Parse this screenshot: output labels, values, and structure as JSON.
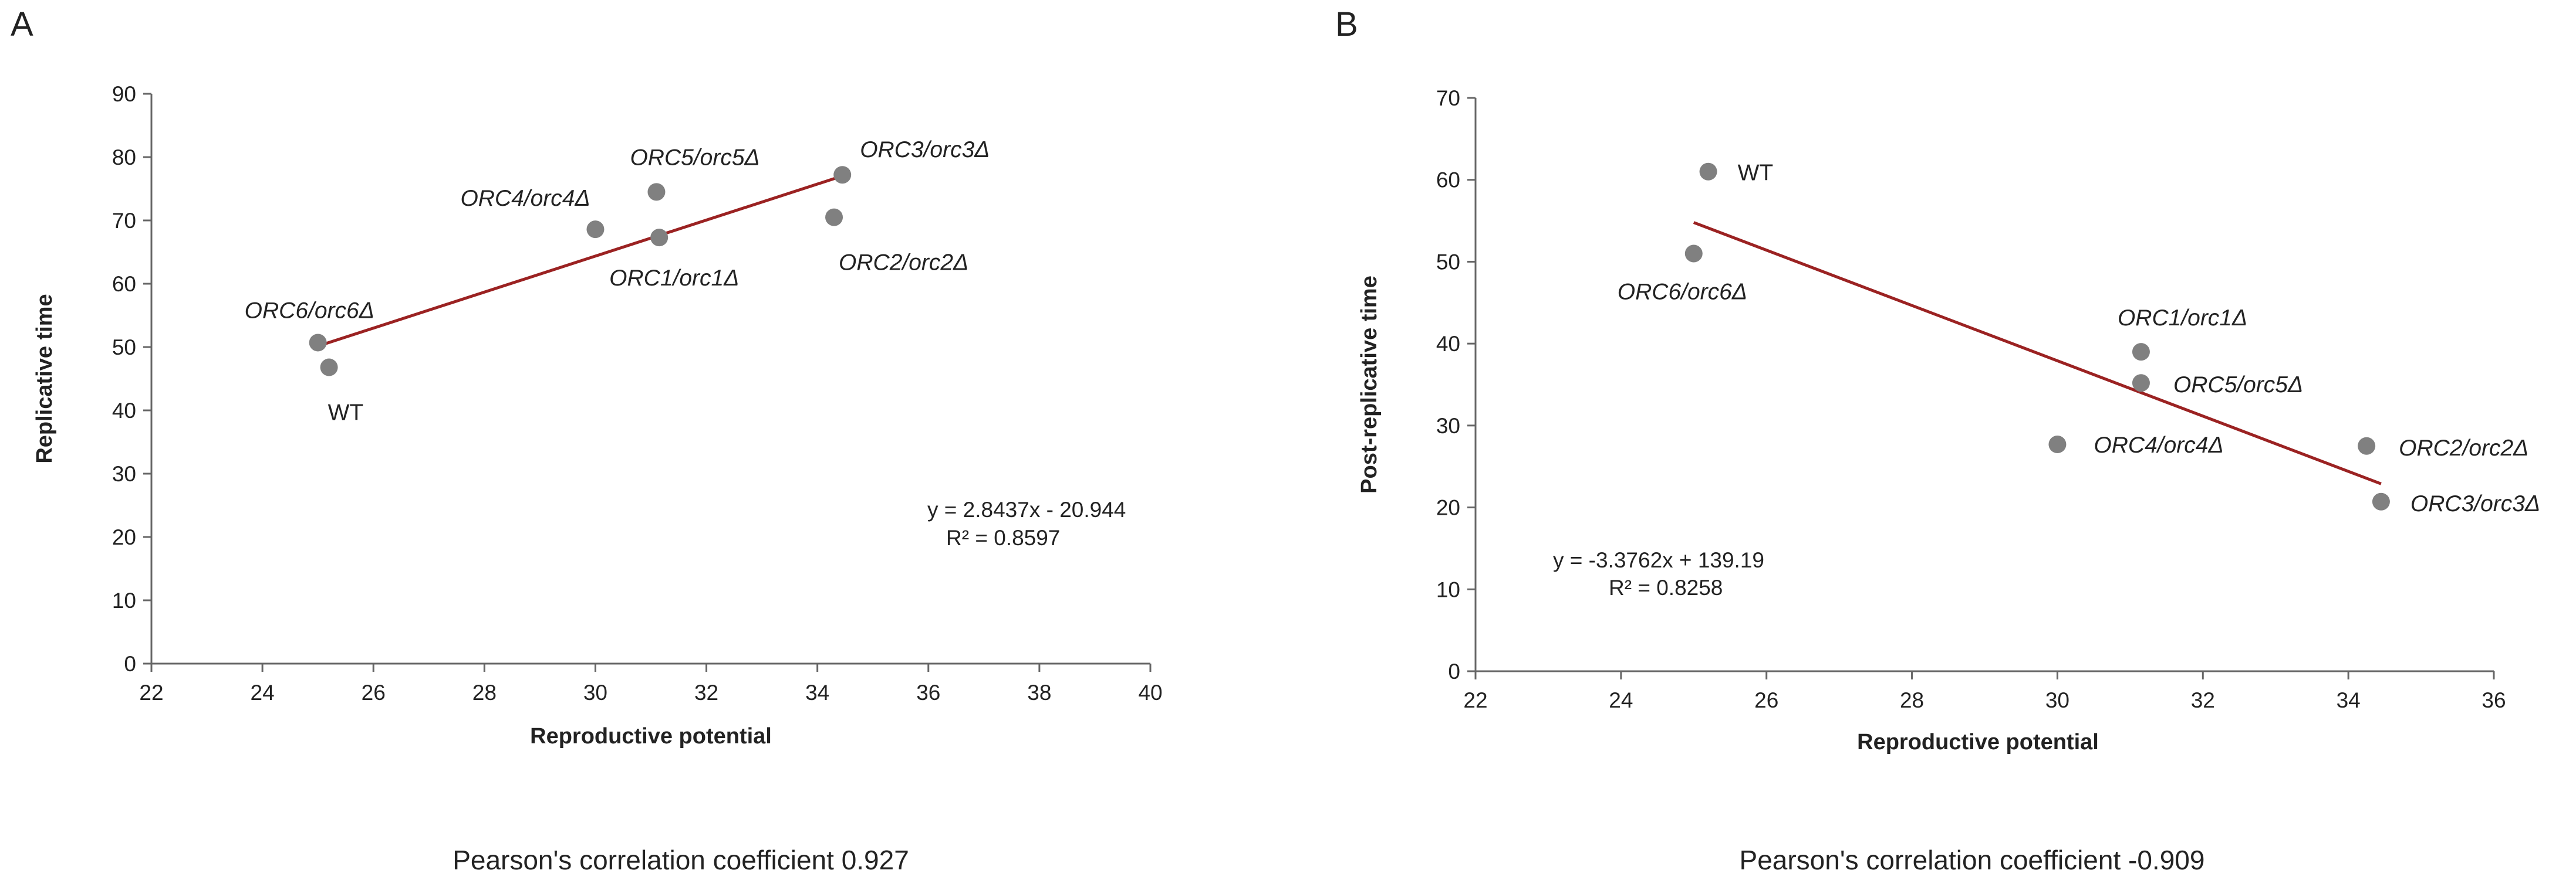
{
  "panels": [
    {
      "letter": "A",
      "caption": "Pearson's correlation coefficient 0.927"
    },
    {
      "letter": "B",
      "caption": "Pearson's correlation coefficient -0.909"
    }
  ],
  "colors": {
    "point": "#808080",
    "trendline": "#9b2222",
    "axis": "#666666"
  },
  "chart_data": [
    {
      "type": "scatter",
      "title": "",
      "xlabel": "Reproductive potential",
      "ylabel": "Replicative time",
      "xlim": [
        22,
        40
      ],
      "ylim": [
        0,
        90
      ],
      "xticks": [
        22,
        24,
        26,
        28,
        30,
        32,
        34,
        36,
        38,
        40
      ],
      "yticks": [
        0,
        10,
        20,
        30,
        40,
        50,
        60,
        70,
        80,
        90
      ],
      "points": [
        {
          "label": "WT",
          "x": 25.2,
          "y": 46.8,
          "italic": false
        },
        {
          "label": "ORC6/orc6Δ",
          "x": 25.0,
          "y": 50.7,
          "italic": true
        },
        {
          "label": "ORC4/orc4Δ",
          "x": 30.0,
          "y": 68.6,
          "italic": true
        },
        {
          "label": "ORC5/orc5Δ",
          "x": 31.1,
          "y": 74.5,
          "italic": true
        },
        {
          "label": "ORC1/orc1Δ",
          "x": 31.15,
          "y": 67.3,
          "italic": true
        },
        {
          "label": "ORC2/orc2Δ",
          "x": 34.3,
          "y": 70.5,
          "italic": true
        },
        {
          "label": "ORC3/orc3Δ",
          "x": 34.45,
          "y": 77.2,
          "italic": true
        }
      ],
      "trendline": {
        "slope": 2.8437,
        "intercept": -20.944,
        "x_range": [
          25.0,
          34.45
        ]
      },
      "equation": "y = 2.8437x - 20.944",
      "r_squared": "R² = 0.8597"
    },
    {
      "type": "scatter",
      "title": "",
      "xlabel": "Reproductive potential",
      "ylabel": "Post-replicative time",
      "xlim": [
        22,
        36
      ],
      "ylim": [
        0,
        70
      ],
      "xticks": [
        22,
        24,
        26,
        28,
        30,
        32,
        34,
        36
      ],
      "yticks": [
        0,
        10,
        20,
        30,
        40,
        50,
        60,
        70
      ],
      "points": [
        {
          "label": "WT",
          "x": 25.2,
          "y": 61.0,
          "italic": false
        },
        {
          "label": "ORC6/orc6Δ",
          "x": 25.0,
          "y": 51.0,
          "italic": true
        },
        {
          "label": "ORC1/orc1Δ",
          "x": 31.15,
          "y": 39.0,
          "italic": true
        },
        {
          "label": "ORC5/orc5Δ",
          "x": 31.15,
          "y": 35.2,
          "italic": true
        },
        {
          "label": "ORC4/orc4Δ",
          "x": 30.0,
          "y": 27.7,
          "italic": true
        },
        {
          "label": "ORC2/orc2Δ",
          "x": 34.25,
          "y": 27.5,
          "italic": true
        },
        {
          "label": "ORC3/orc3Δ",
          "x": 34.45,
          "y": 20.7,
          "italic": true
        }
      ],
      "trendline": {
        "slope": -3.3762,
        "intercept": 139.19,
        "x_range": [
          25.0,
          34.45
        ]
      },
      "equation": "y = -3.3762x + 139.19",
      "r_squared": "R² = 0.8258"
    }
  ]
}
